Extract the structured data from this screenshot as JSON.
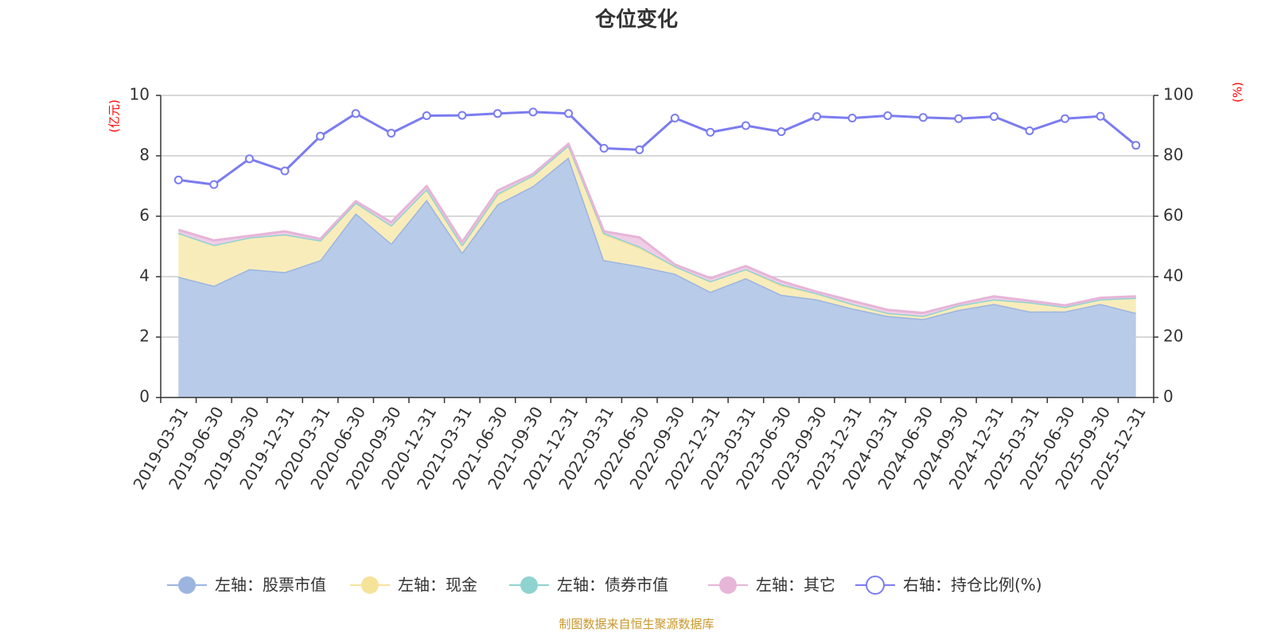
{
  "chart_data": {
    "type": "area",
    "title": "仓位变化",
    "left_axis_unit": "(亿元)",
    "right_axis_unit": "(%)",
    "categories": [
      "2019-03-31",
      "2019-06-30",
      "2019-09-30",
      "2019-12-31",
      "2020-03-31",
      "2020-06-30",
      "2020-09-30",
      "2020-12-31",
      "2021-03-31",
      "2021-06-30",
      "2021-09-30",
      "2021-12-31",
      "2022-03-31",
      "2022-06-30",
      "2022-09-30",
      "2022-12-31",
      "2023-03-31",
      "2023-06-30",
      "2023-09-30",
      "2023-12-31",
      "2024-03-31",
      "2024-06-30",
      "2024-09-30",
      "2024-12-31",
      "2025-03-31",
      "2025-06-30",
      "2025-09-30",
      "2025-12-31"
    ],
    "left_ylim": [
      0,
      10
    ],
    "left_ticks": [
      0,
      2,
      4,
      6,
      8,
      10
    ],
    "right_ylim": [
      0,
      100
    ],
    "right_ticks": [
      0,
      20,
      40,
      60,
      80,
      100
    ],
    "stacked_series": [
      {
        "name": "左轴：股票市值",
        "color": "#9bb5e0",
        "fill": "#b8cbe9",
        "values": [
          4.0,
          3.7,
          4.25,
          4.15,
          4.55,
          6.1,
          5.1,
          6.55,
          4.8,
          6.4,
          7.0,
          7.95,
          4.55,
          4.35,
          4.1,
          3.5,
          3.95,
          3.4,
          3.25,
          2.95,
          2.7,
          2.6,
          2.9,
          3.1,
          2.85,
          2.85,
          3.1,
          2.8
        ]
      },
      {
        "name": "左轴：现金",
        "color": "#f5e39a",
        "fill": "#f9ecbb",
        "values": [
          1.45,
          1.35,
          1.05,
          1.25,
          0.65,
          0.35,
          0.6,
          0.35,
          0.25,
          0.3,
          0.35,
          0.4,
          0.85,
          0.6,
          0.25,
          0.35,
          0.3,
          0.3,
          0.2,
          0.15,
          0.1,
          0.1,
          0.15,
          0.15,
          0.3,
          0.15,
          0.15,
          0.5
        ]
      },
      {
        "name": "左轴：债券市值",
        "color": "#8fd3d0",
        "fill": "#b5e3e0",
        "values": [
          0,
          0,
          0,
          0,
          0,
          0,
          0,
          0,
          0,
          0.05,
          0,
          0,
          0.05,
          0.05,
          0,
          0,
          0,
          0.05,
          0,
          0,
          0,
          0,
          0,
          0,
          0,
          0,
          0,
          0
        ]
      },
      {
        "name": "左轴：其它",
        "color": "#e6b5d8",
        "fill": "#f0cde6",
        "values": [
          0.1,
          0.15,
          0.05,
          0.1,
          0.05,
          0.05,
          0.1,
          0.1,
          0.1,
          0.1,
          0.05,
          0.05,
          0.05,
          0.3,
          0.05,
          0.1,
          0.1,
          0.1,
          0.05,
          0.1,
          0.1,
          0.1,
          0.05,
          0.1,
          0.05,
          0.05,
          0.05,
          0.05
        ]
      }
    ],
    "line_series": {
      "name": "右轴：持仓比例(%)",
      "color": "#7b7cf0",
      "values": [
        72,
        70.5,
        79,
        75,
        86.5,
        94,
        87.5,
        93.3,
        93.4,
        94,
        94.5,
        94,
        82.5,
        82,
        92.5,
        87.8,
        90,
        88,
        93,
        92.5,
        93.3,
        92.7,
        92.3,
        93,
        88.3,
        92.3,
        93.1,
        83.5
      ]
    }
  },
  "source_note": "制图数据来自恒生聚源数据库"
}
